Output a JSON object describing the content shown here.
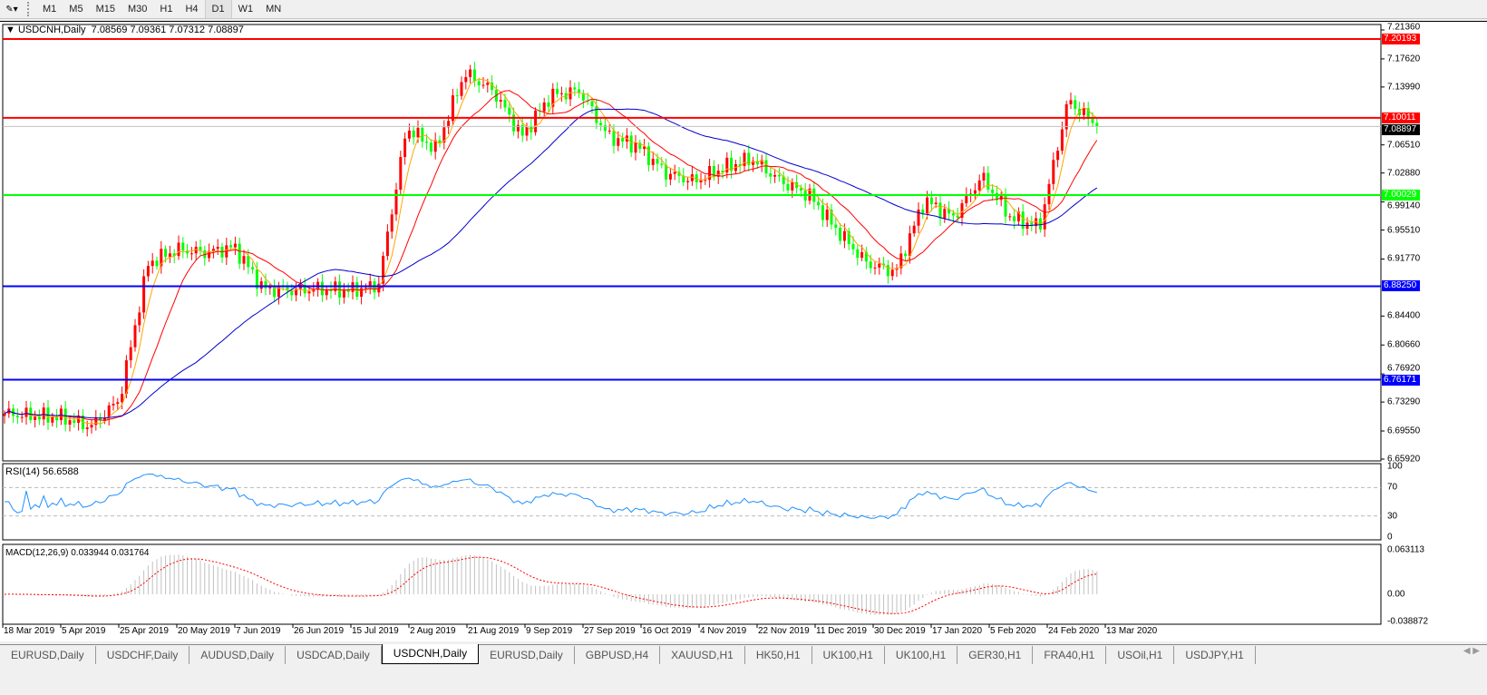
{
  "toolbar": {
    "timeframes": [
      "M1",
      "M5",
      "M15",
      "M30",
      "H1",
      "H4",
      "D1",
      "W1",
      "MN"
    ],
    "active": "D1"
  },
  "header": {
    "symbol": "USDCNH,Daily",
    "ohlc": "7.08569 7.09361 7.07312 7.08897"
  },
  "rsi": {
    "title": "RSI(14) 56.6588",
    "levels": [
      "100",
      "70",
      "30",
      "0"
    ]
  },
  "macd": {
    "title": "MACD(12,26,9) 0.033944 0.031764",
    "ticks": [
      "0.063113",
      "0.00",
      "-0.038872"
    ]
  },
  "price_axis": [
    "7.21360",
    "7.17620",
    "7.13990",
    "7.06510",
    "7.02880",
    "6.99140",
    "6.95510",
    "6.91770",
    "6.84400",
    "6.80660",
    "6.76920",
    "6.73290",
    "6.69550",
    "6.65920"
  ],
  "levels": [
    {
      "price": "7.20193",
      "color": "#ff0000"
    },
    {
      "price": "7.10011",
      "color": "#ff0000"
    },
    {
      "price": "7.08897",
      "color": "#000000",
      "kind": "bid"
    },
    {
      "price": "7.00029",
      "color": "#00ff00"
    },
    {
      "price": "6.88250",
      "color": "#0000ff"
    },
    {
      "price": "6.76171",
      "color": "#0000ff"
    }
  ],
  "date_axis": [
    "18 Mar 2019",
    "5 Apr 2019",
    "25 Apr 2019",
    "20 May 2019",
    "7 Jun 2019",
    "26 Jun 2019",
    "15 Jul 2019",
    "2 Aug 2019",
    "21 Aug 2019",
    "9 Sep 2019",
    "27 Sep 2019",
    "16 Oct 2019",
    "4 Nov 2019",
    "22 Nov 2019",
    "11 Dec 2019",
    "30 Dec 2019",
    "17 Jan 2020",
    "5 Feb 2020",
    "24 Feb 2020",
    "13 Mar 2020"
  ],
  "tabs": [
    "EURUSD,Daily",
    "USDCHF,Daily",
    "AUDUSD,Daily",
    "USDCAD,Daily",
    "USDCNH,Daily",
    "EURUSD,Daily",
    "GBPUSD,H4",
    "XAUUSD,H1",
    "HK50,H1",
    "UK100,H1",
    "UK100,H1",
    "GER30,H1",
    "FRA40,H1",
    "USOil,H1",
    "USDJPY,H1"
  ],
  "active_tab": 4,
  "chart_data": {
    "type": "candlestick",
    "symbol": "USDCNH",
    "timeframe": "Daily",
    "ylim": [
      6.6592,
      7.2136
    ],
    "up_color": "#ff0000",
    "down_color": "#00ff00",
    "approx_closes_weekly_anchors": [
      6.718,
      6.715,
      6.713,
      6.701,
      6.736,
      6.912,
      6.93,
      6.926,
      6.933,
      6.879,
      6.877,
      6.879,
      6.877,
      6.883,
      7.088,
      7.059,
      7.158,
      7.135,
      7.076,
      7.129,
      7.135,
      7.076,
      7.064,
      7.029,
      7.018,
      7.035,
      7.047,
      7.018,
      7.0,
      6.953,
      6.912,
      6.901,
      6.994,
      6.971,
      7.024,
      6.971,
      6.959,
      7.123,
      7.08897
    ],
    "moving_averages": [
      {
        "color": "#ffa500"
      },
      {
        "color": "#ff0000"
      },
      {
        "color": "#0000cd"
      }
    ],
    "rsi_color": "#1e90ff",
    "macd_signal_color": "#ff0000",
    "macd_hist_color": "#c0c0c0"
  }
}
